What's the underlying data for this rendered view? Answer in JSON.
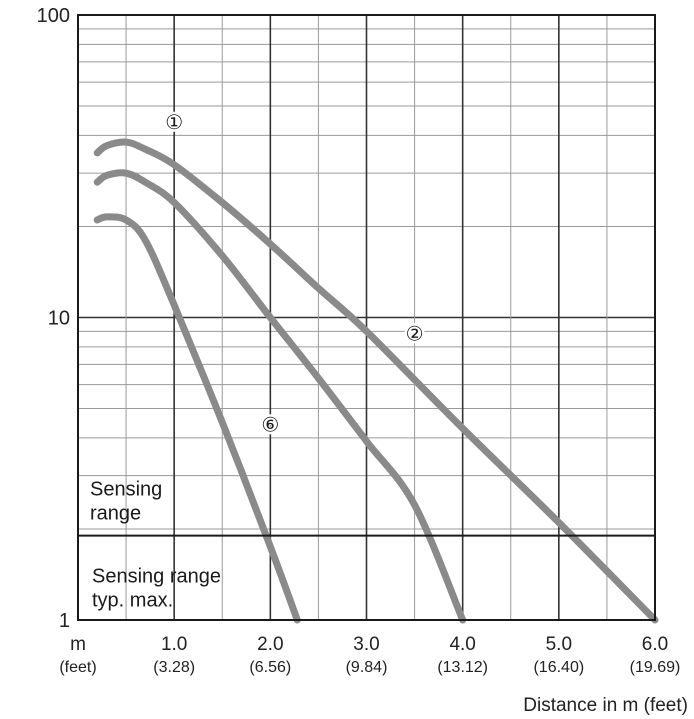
{
  "chart_data": {
    "type": "line",
    "title": "",
    "xlabel": "Distance in m (feet)",
    "ylabel": "",
    "x_scale": "linear",
    "y_scale": "log",
    "xlim": [
      0,
      6
    ],
    "ylim": [
      1,
      100
    ],
    "grid": true,
    "x_unit_label": "m",
    "x_unit_sublabel": "(feet)",
    "x_ticks": [
      {
        "value": 1,
        "label": "1.0",
        "sublabel": "(3.28)"
      },
      {
        "value": 2,
        "label": "2.0",
        "sublabel": "(6.56)"
      },
      {
        "value": 3,
        "label": "3.0",
        "sublabel": "(9.84)"
      },
      {
        "value": 4,
        "label": "4.0",
        "sublabel": "(13.12)"
      },
      {
        "value": 5,
        "label": "5.0",
        "sublabel": "(16.40)"
      },
      {
        "value": 6,
        "label": "6.0",
        "sublabel": "(19.69)"
      }
    ],
    "y_ticks": [
      {
        "value": 1,
        "label": "1"
      },
      {
        "value": 10,
        "label": "10"
      },
      {
        "value": 100,
        "label": "100"
      }
    ],
    "threshold": {
      "value": 1.9,
      "label_above": [
        "Sensing",
        "range"
      ],
      "label_below": [
        "Sensing range",
        "typ. max."
      ]
    },
    "series": [
      {
        "name": "①",
        "color": "#8a8a8a",
        "points": [
          [
            0.2,
            35
          ],
          [
            0.3,
            37
          ],
          [
            0.5,
            38
          ],
          [
            0.7,
            36
          ],
          [
            1.0,
            32
          ],
          [
            1.5,
            24
          ],
          [
            2.0,
            17.5
          ],
          [
            2.5,
            12.5
          ],
          [
            3.0,
            9
          ],
          [
            4.0,
            4.3
          ],
          [
            5.0,
            2.1
          ],
          [
            6.0,
            1.0
          ]
        ]
      },
      {
        "name": "②",
        "color": "#8a8a8a",
        "points": [
          [
            0.2,
            28
          ],
          [
            0.3,
            29.5
          ],
          [
            0.5,
            30
          ],
          [
            0.7,
            28
          ],
          [
            1.0,
            24
          ],
          [
            1.5,
            16
          ],
          [
            2.0,
            10
          ],
          [
            2.5,
            6.3
          ],
          [
            3.0,
            3.9
          ],
          [
            3.5,
            2.4
          ],
          [
            4.0,
            1.0
          ]
        ]
      },
      {
        "name": "⑥",
        "color": "#8a8a8a",
        "points": [
          [
            0.2,
            21
          ],
          [
            0.3,
            21.5
          ],
          [
            0.5,
            21
          ],
          [
            0.7,
            18
          ],
          [
            1.0,
            11
          ],
          [
            1.5,
            4.5
          ],
          [
            2.0,
            1.75
          ],
          [
            2.28,
            1.0
          ]
        ]
      }
    ],
    "series_label_positions": [
      [
        1.0,
        45
      ],
      [
        3.5,
        9
      ],
      [
        2.0,
        4.5
      ]
    ]
  }
}
